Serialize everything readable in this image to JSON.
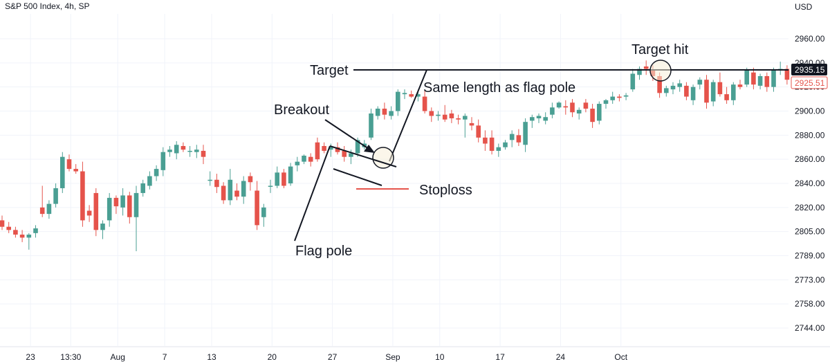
{
  "chart_title": "S&P 500 Index, 4h, SP",
  "chart_data": {
    "type": "candlestick",
    "currency": "USD",
    "y_ticks": [
      2744.0,
      2758.0,
      2773.0,
      2789.0,
      2805.0,
      2820.0,
      2840.0,
      2860.0,
      2880.0,
      2900.0,
      2920.0,
      2940.0,
      2960.0
    ],
    "y_tick_labels": [
      "2744.00",
      "2758.00",
      "2773.00",
      "2789.00",
      "2805.00",
      "2820.00",
      "2840.00",
      "2860.00",
      "2880.00",
      "2900.00",
      "2920.00",
      "2940.00",
      "2960.00"
    ],
    "x_ticks": [
      {
        "label": "23",
        "bar": 3
      },
      {
        "label": "13:30",
        "bar": 9
      },
      {
        "label": "Aug",
        "bar": 16
      },
      {
        "label": "7",
        "bar": 23
      },
      {
        "label": "13",
        "bar": 30
      },
      {
        "label": "20",
        "bar": 39
      },
      {
        "label": "27",
        "bar": 48
      },
      {
        "label": "Sep",
        "bar": 57
      },
      {
        "label": "10",
        "bar": 64
      },
      {
        "label": "17",
        "bar": 73
      },
      {
        "label": "24",
        "bar": 82
      },
      {
        "label": "Oct",
        "bar": 91
      }
    ],
    "last_price": 2935.15,
    "last_price_label": "2935.15",
    "secondary_price": 2925.51,
    "secondary_price_label": "2925.51",
    "candles": [
      [
        2812,
        2815,
        2806,
        2808
      ],
      [
        2808,
        2811,
        2804,
        2806
      ],
      [
        2806,
        2808,
        2801,
        2803
      ],
      [
        2803,
        2806,
        2798,
        2801
      ],
      [
        2801,
        2804,
        2793,
        2803
      ],
      [
        2804,
        2809,
        2801,
        2807
      ],
      [
        2820,
        2838,
        2814,
        2816
      ],
      [
        2816,
        2826,
        2813,
        2823
      ],
      [
        2823,
        2840,
        2820,
        2836
      ],
      [
        2836,
        2866,
        2832,
        2862
      ],
      [
        2860,
        2864,
        2850,
        2852
      ],
      [
        2852,
        2856,
        2848,
        2850
      ],
      [
        2850,
        2858,
        2808,
        2812
      ],
      [
        2818,
        2822,
        2811,
        2815
      ],
      [
        2832,
        2836,
        2802,
        2806
      ],
      [
        2806,
        2812,
        2800,
        2810
      ],
      [
        2812,
        2832,
        2808,
        2828
      ],
      [
        2828,
        2830,
        2816,
        2821
      ],
      [
        2820,
        2836,
        2815,
        2830
      ],
      [
        2830,
        2833,
        2810,
        2814
      ],
      [
        2814,
        2838,
        2792,
        2832
      ],
      [
        2832,
        2843,
        2829,
        2840
      ],
      [
        2838,
        2850,
        2835,
        2846
      ],
      [
        2846,
        2855,
        2842,
        2852
      ],
      [
        2851,
        2870,
        2846,
        2866
      ],
      [
        2866,
        2871,
        2862,
        2868
      ],
      [
        2865,
        2875,
        2860,
        2872
      ],
      [
        2871,
        2874,
        2866,
        2868
      ],
      [
        2867,
        2871,
        2862,
        2867
      ],
      [
        2866,
        2872,
        2861,
        2868
      ],
      [
        2867,
        2872,
        2856,
        2862
      ],
      [
        2843,
        2850,
        2838,
        2843
      ],
      [
        2843,
        2848,
        2832,
        2837
      ],
      [
        2838,
        2841,
        2823,
        2826
      ],
      [
        2826,
        2852,
        2822,
        2843
      ],
      [
        2834,
        2840,
        2826,
        2829
      ],
      [
        2829,
        2846,
        2823,
        2842
      ],
      [
        2846,
        2849,
        2834,
        2841
      ],
      [
        2834,
        2842,
        2806,
        2809
      ],
      [
        2814,
        2823,
        2808,
        2820
      ],
      [
        2838,
        2843,
        2832,
        2838
      ],
      [
        2838,
        2854,
        2836,
        2849
      ],
      [
        2849,
        2852,
        2836,
        2838
      ],
      [
        2840,
        2857,
        2838,
        2854
      ],
      [
        2855,
        2862,
        2850,
        2858
      ],
      [
        2858,
        2864,
        2856,
        2863
      ],
      [
        2862,
        2865,
        2854,
        2858
      ],
      [
        2874,
        2878,
        2858,
        2860
      ],
      [
        2871,
        2874,
        2865,
        2867
      ],
      [
        2868,
        2873,
        2862,
        2870
      ],
      [
        2870,
        2874,
        2864,
        2866
      ],
      [
        2867,
        2871,
        2858,
        2862
      ],
      [
        2862,
        2868,
        2856,
        2865
      ],
      [
        2865,
        2878,
        2862,
        2876
      ],
      [
        2870,
        2876,
        2868,
        2873
      ],
      [
        2878,
        2902,
        2876,
        2898
      ],
      [
        2896,
        2904,
        2893,
        2902
      ],
      [
        2902,
        2907,
        2893,
        2897
      ],
      [
        2896,
        2904,
        2893,
        2900
      ],
      [
        2900,
        2918,
        2896,
        2916
      ],
      [
        2914,
        2918,
        2910,
        2915
      ],
      [
        2914,
        2917,
        2911,
        2912
      ],
      [
        2912,
        2916,
        2908,
        2914
      ],
      [
        2912,
        2917,
        2898,
        2900
      ],
      [
        2900,
        2903,
        2891,
        2896
      ],
      [
        2896,
        2900,
        2892,
        2897
      ],
      [
        2897,
        2905,
        2891,
        2893
      ],
      [
        2898,
        2901,
        2890,
        2894
      ],
      [
        2894,
        2897,
        2889,
        2893
      ],
      [
        2893,
        2898,
        2878,
        2896
      ],
      [
        2890,
        2895,
        2884,
        2888
      ],
      [
        2888,
        2893,
        2874,
        2878
      ],
      [
        2878,
        2884,
        2867,
        2873
      ],
      [
        2878,
        2884,
        2864,
        2867
      ],
      [
        2867,
        2873,
        2862,
        2870
      ],
      [
        2870,
        2876,
        2868,
        2874
      ],
      [
        2876,
        2884,
        2870,
        2881
      ],
      [
        2880,
        2885,
        2871,
        2874
      ],
      [
        2872,
        2894,
        2866,
        2891
      ],
      [
        2892,
        2897,
        2886,
        2895
      ],
      [
        2894,
        2898,
        2890,
        2896
      ],
      [
        2892,
        2899,
        2889,
        2895
      ],
      [
        2897,
        2907,
        2894,
        2903
      ],
      [
        2903,
        2908,
        2902,
        2907
      ],
      [
        2904,
        2909,
        2897,
        2903
      ],
      [
        2907,
        2910,
        2895,
        2899
      ],
      [
        2898,
        2903,
        2893,
        2901
      ],
      [
        2907,
        2910,
        2899,
        2902
      ],
      [
        2902,
        2906,
        2886,
        2891
      ],
      [
        2892,
        2908,
        2889,
        2906
      ],
      [
        2906,
        2910,
        2902,
        2909
      ],
      [
        2909,
        2916,
        2906,
        2912
      ],
      [
        2912,
        2914,
        2908,
        2911
      ],
      [
        2912,
        2915,
        2909,
        2913
      ],
      [
        2918,
        2935,
        2916,
        2931
      ],
      [
        2930,
        2937,
        2926,
        2935
      ],
      [
        2937,
        2942,
        2930,
        2935
      ],
      [
        2934,
        2938,
        2925,
        2929
      ],
      [
        2929,
        2932,
        2911,
        2915
      ],
      [
        2915,
        2921,
        2912,
        2919
      ],
      [
        2918,
        2924,
        2914,
        2921
      ],
      [
        2920,
        2926,
        2916,
        2923
      ],
      [
        2921,
        2924,
        2909,
        2912
      ],
      [
        2909,
        2922,
        2905,
        2920
      ],
      [
        2922,
        2928,
        2918,
        2926
      ],
      [
        2926,
        2930,
        2902,
        2907
      ],
      [
        2908,
        2926,
        2904,
        2924
      ],
      [
        2924,
        2932,
        2912,
        2914
      ],
      [
        2914,
        2920,
        2906,
        2909
      ],
      [
        2909,
        2924,
        2905,
        2922
      ],
      [
        2922,
        2926,
        2918,
        2920
      ],
      [
        2922,
        2936,
        2920,
        2934
      ],
      [
        2932,
        2936,
        2918,
        2922
      ],
      [
        2921,
        2931,
        2918,
        2929
      ],
      [
        2929,
        2932,
        2916,
        2920
      ],
      [
        2920,
        2936,
        2916,
        2934
      ],
      [
        2934,
        2941,
        2930,
        2935
      ],
      [
        2935,
        2938,
        2922,
        2926
      ]
    ],
    "annotations": {
      "target": {
        "label": "Target",
        "price": 2935.15
      },
      "target_hit": {
        "label": "Target hit"
      },
      "measured_move": {
        "label": "Same length as flag pole"
      },
      "breakout": {
        "label": "Breakout"
      },
      "stoploss": {
        "label": "Stoploss",
        "price": 2850
      },
      "flag_pole": {
        "label": "Flag pole"
      }
    },
    "colors": {
      "up": "#4a9f93",
      "down": "#e5534b",
      "grid": "#f0f3fa",
      "text": "#131722",
      "stoploss_line": "#e5534b",
      "circle_fill": "#f7efd8",
      "last_price_bg": "#131722",
      "secondary_price_border": "#e5534b"
    }
  }
}
